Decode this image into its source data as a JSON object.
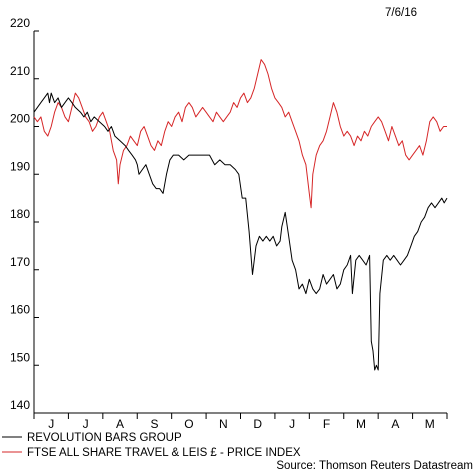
{
  "chart_data": {
    "type": "line",
    "date": "7/6/16",
    "source": "Source: Thomson Reuters Datastream",
    "ylim": [
      140,
      220
    ],
    "yticks": [
      140,
      150,
      160,
      170,
      180,
      190,
      200,
      210,
      220
    ],
    "xlim": [
      0,
      12
    ],
    "grid": false,
    "legend_position": "bottom-left",
    "months": [
      {
        "label": "J",
        "x": 0.5
      },
      {
        "label": "J",
        "x": 1.5
      },
      {
        "label": "A",
        "x": 2.5
      },
      {
        "label": "S",
        "x": 3.5
      },
      {
        "label": "O",
        "x": 4.5
      },
      {
        "label": "N",
        "x": 5.5
      },
      {
        "label": "D",
        "x": 6.5
      },
      {
        "label": "J",
        "x": 7.5
      },
      {
        "label": "F",
        "x": 8.5
      },
      {
        "label": "M",
        "x": 9.5
      },
      {
        "label": "A",
        "x": 10.5
      },
      {
        "label": "M",
        "x": 11.5
      }
    ],
    "series": [
      {
        "name": "REVOLUTION BARS GROUP",
        "color": "#000000",
        "points": [
          [
            0.0,
            203
          ],
          [
            0.1,
            204
          ],
          [
            0.2,
            205
          ],
          [
            0.3,
            206
          ],
          [
            0.4,
            207
          ],
          [
            0.45,
            205
          ],
          [
            0.5,
            207
          ],
          [
            0.6,
            205
          ],
          [
            0.7,
            206
          ],
          [
            0.8,
            204
          ],
          [
            0.9,
            205
          ],
          [
            1.0,
            206
          ],
          [
            1.1,
            205
          ],
          [
            1.2,
            204
          ],
          [
            1.35,
            203
          ],
          [
            1.45,
            202
          ],
          [
            1.55,
            203
          ],
          [
            1.65,
            201
          ],
          [
            1.75,
            202
          ],
          [
            1.9,
            201
          ],
          [
            2.05,
            200
          ],
          [
            2.15,
            199
          ],
          [
            2.25,
            200
          ],
          [
            2.35,
            198
          ],
          [
            2.5,
            197
          ],
          [
            2.65,
            196
          ],
          [
            2.75,
            195
          ],
          [
            2.85,
            194
          ],
          [
            2.95,
            193
          ],
          [
            3.0,
            192
          ],
          [
            3.05,
            190
          ],
          [
            3.15,
            191
          ],
          [
            3.25,
            192
          ],
          [
            3.35,
            190
          ],
          [
            3.45,
            188
          ],
          [
            3.55,
            187
          ],
          [
            3.65,
            187
          ],
          [
            3.75,
            186
          ],
          [
            3.85,
            190
          ],
          [
            3.95,
            193
          ],
          [
            4.05,
            194
          ],
          [
            4.2,
            194
          ],
          [
            4.35,
            193
          ],
          [
            4.5,
            194
          ],
          [
            4.65,
            194
          ],
          [
            4.8,
            194
          ],
          [
            4.95,
            194
          ],
          [
            5.1,
            194
          ],
          [
            5.25,
            192
          ],
          [
            5.4,
            193
          ],
          [
            5.55,
            192
          ],
          [
            5.7,
            192
          ],
          [
            5.85,
            191
          ],
          [
            5.95,
            190
          ],
          [
            6.05,
            185
          ],
          [
            6.15,
            185
          ],
          [
            6.25,
            178
          ],
          [
            6.35,
            169
          ],
          [
            6.45,
            175
          ],
          [
            6.55,
            177
          ],
          [
            6.65,
            176
          ],
          [
            6.75,
            177
          ],
          [
            6.85,
            176
          ],
          [
            6.95,
            177
          ],
          [
            7.05,
            175
          ],
          [
            7.15,
            176
          ],
          [
            7.2,
            179
          ],
          [
            7.3,
            182
          ],
          [
            7.4,
            177
          ],
          [
            7.5,
            172
          ],
          [
            7.6,
            170
          ],
          [
            7.7,
            166
          ],
          [
            7.8,
            167
          ],
          [
            7.9,
            165
          ],
          [
            8.0,
            168
          ],
          [
            8.1,
            166
          ],
          [
            8.2,
            165
          ],
          [
            8.3,
            166
          ],
          [
            8.4,
            169
          ],
          [
            8.5,
            167
          ],
          [
            8.6,
            168
          ],
          [
            8.7,
            169
          ],
          [
            8.8,
            166
          ],
          [
            8.9,
            167
          ],
          [
            9.0,
            170
          ],
          [
            9.1,
            171
          ],
          [
            9.2,
            173
          ],
          [
            9.25,
            165
          ],
          [
            9.35,
            172
          ],
          [
            9.45,
            173
          ],
          [
            9.55,
            172
          ],
          [
            9.65,
            171
          ],
          [
            9.75,
            173
          ],
          [
            9.8,
            155
          ],
          [
            9.85,
            153
          ],
          [
            9.9,
            149
          ],
          [
            9.95,
            150
          ],
          [
            10.0,
            149
          ],
          [
            10.05,
            165
          ],
          [
            10.15,
            172
          ],
          [
            10.25,
            173
          ],
          [
            10.35,
            172
          ],
          [
            10.45,
            173
          ],
          [
            10.55,
            172
          ],
          [
            10.65,
            171
          ],
          [
            10.75,
            172
          ],
          [
            10.85,
            173
          ],
          [
            10.95,
            175
          ],
          [
            11.05,
            177
          ],
          [
            11.15,
            178
          ],
          [
            11.25,
            180
          ],
          [
            11.35,
            181
          ],
          [
            11.45,
            183
          ],
          [
            11.55,
            184
          ],
          [
            11.65,
            183
          ],
          [
            11.75,
            184
          ],
          [
            11.85,
            185
          ],
          [
            11.92,
            184
          ],
          [
            12.0,
            185
          ]
        ]
      },
      {
        "name": "FTSE ALL SHARE TRAVEL & LEIS £ - PRICE INDEX",
        "color": "#d62728",
        "points": [
          [
            0.0,
            202
          ],
          [
            0.1,
            201
          ],
          [
            0.2,
            202
          ],
          [
            0.3,
            199
          ],
          [
            0.4,
            198
          ],
          [
            0.5,
            200
          ],
          [
            0.6,
            203
          ],
          [
            0.7,
            205
          ],
          [
            0.8,
            204
          ],
          [
            0.9,
            202
          ],
          [
            1.0,
            201
          ],
          [
            1.1,
            204
          ],
          [
            1.2,
            207
          ],
          [
            1.3,
            206
          ],
          [
            1.4,
            204
          ],
          [
            1.5,
            202
          ],
          [
            1.6,
            201
          ],
          [
            1.7,
            199
          ],
          [
            1.8,
            200
          ],
          [
            1.9,
            202
          ],
          [
            2.0,
            203
          ],
          [
            2.1,
            201
          ],
          [
            2.2,
            199
          ],
          [
            2.3,
            195
          ],
          [
            2.4,
            193
          ],
          [
            2.45,
            188
          ],
          [
            2.5,
            192
          ],
          [
            2.6,
            195
          ],
          [
            2.7,
            196
          ],
          [
            2.8,
            198
          ],
          [
            2.9,
            197
          ],
          [
            3.0,
            196
          ],
          [
            3.1,
            199
          ],
          [
            3.2,
            200
          ],
          [
            3.3,
            198
          ],
          [
            3.4,
            196
          ],
          [
            3.5,
            195
          ],
          [
            3.6,
            197
          ],
          [
            3.7,
            196
          ],
          [
            3.8,
            199
          ],
          [
            3.9,
            201
          ],
          [
            4.0,
            200
          ],
          [
            4.1,
            202
          ],
          [
            4.2,
            203
          ],
          [
            4.3,
            201
          ],
          [
            4.4,
            204
          ],
          [
            4.5,
            205
          ],
          [
            4.6,
            204
          ],
          [
            4.7,
            202
          ],
          [
            4.8,
            203
          ],
          [
            4.9,
            204
          ],
          [
            5.0,
            203
          ],
          [
            5.1,
            202
          ],
          [
            5.2,
            201
          ],
          [
            5.3,
            203
          ],
          [
            5.4,
            202
          ],
          [
            5.5,
            201
          ],
          [
            5.6,
            202
          ],
          [
            5.7,
            203
          ],
          [
            5.8,
            205
          ],
          [
            5.9,
            204
          ],
          [
            6.0,
            206
          ],
          [
            6.1,
            207
          ],
          [
            6.2,
            205
          ],
          [
            6.3,
            206
          ],
          [
            6.4,
            208
          ],
          [
            6.5,
            211
          ],
          [
            6.6,
            214
          ],
          [
            6.7,
            213
          ],
          [
            6.8,
            211
          ],
          [
            6.9,
            208
          ],
          [
            7.0,
            206
          ],
          [
            7.1,
            205
          ],
          [
            7.2,
            204
          ],
          [
            7.3,
            202
          ],
          [
            7.4,
            203
          ],
          [
            7.5,
            201
          ],
          [
            7.6,
            199
          ],
          [
            7.7,
            197
          ],
          [
            7.8,
            194
          ],
          [
            7.9,
            192
          ],
          [
            8.0,
            186
          ],
          [
            8.05,
            183
          ],
          [
            8.1,
            190
          ],
          [
            8.2,
            194
          ],
          [
            8.3,
            196
          ],
          [
            8.4,
            197
          ],
          [
            8.5,
            199
          ],
          [
            8.6,
            202
          ],
          [
            8.7,
            205
          ],
          [
            8.8,
            203
          ],
          [
            8.9,
            200
          ],
          [
            9.0,
            198
          ],
          [
            9.1,
            199
          ],
          [
            9.2,
            198
          ],
          [
            9.3,
            196
          ],
          [
            9.4,
            198
          ],
          [
            9.5,
            197
          ],
          [
            9.6,
            199
          ],
          [
            9.7,
            198
          ],
          [
            9.8,
            200
          ],
          [
            9.9,
            201
          ],
          [
            10.0,
            202
          ],
          [
            10.1,
            201
          ],
          [
            10.2,
            199
          ],
          [
            10.3,
            197
          ],
          [
            10.4,
            200
          ],
          [
            10.5,
            198
          ],
          [
            10.6,
            196
          ],
          [
            10.7,
            197
          ],
          [
            10.8,
            194
          ],
          [
            10.9,
            193
          ],
          [
            11.0,
            194
          ],
          [
            11.1,
            195
          ],
          [
            11.2,
            196
          ],
          [
            11.3,
            194
          ],
          [
            11.4,
            197
          ],
          [
            11.5,
            201
          ],
          [
            11.6,
            202
          ],
          [
            11.7,
            201
          ],
          [
            11.8,
            199
          ],
          [
            11.9,
            200
          ],
          [
            12.0,
            200
          ]
        ]
      }
    ]
  }
}
